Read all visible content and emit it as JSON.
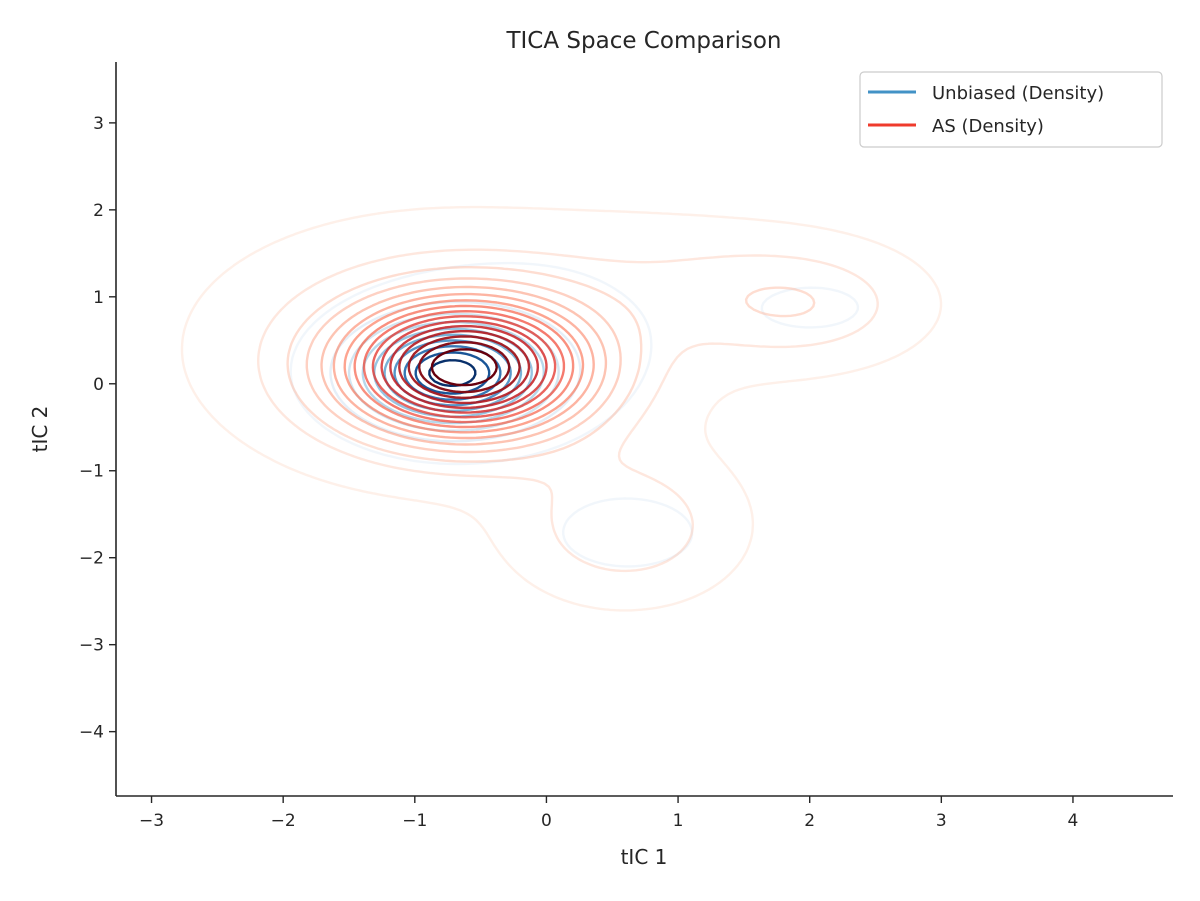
{
  "chart_data": {
    "type": "contour",
    "title": "TICA Space Comparison",
    "xlabel": "tIC 1",
    "ylabel": "tIC 2",
    "xlim": [
      -3.27,
      4.76
    ],
    "ylim": [
      -4.74,
      3.7
    ],
    "xticks": [
      -3,
      -2,
      -1,
      0,
      1,
      2,
      3,
      4
    ],
    "yticks": [
      -4,
      -3,
      -2,
      -1,
      0,
      1,
      2,
      3
    ],
    "xtick_labels": [
      "−3",
      "−2",
      "−1",
      "0",
      "1",
      "2",
      "3",
      "4"
    ],
    "ytick_labels": [
      "−4",
      "−3",
      "−2",
      "−1",
      "0",
      "1",
      "2",
      "3"
    ],
    "grid": false,
    "legend": {
      "placement": "top-right",
      "entries": [
        {
          "label": "Unbiased (Density)",
          "color": "#4292c6"
        },
        {
          "label": "AS (Density)",
          "color": "#ef3b2c"
        }
      ]
    },
    "series": [
      {
        "name": "Unbiased (Density)",
        "colormap": "Blues",
        "levels": 10,
        "components": [
          {
            "x": -0.72,
            "y": 0.12,
            "sx": 0.45,
            "sy": 0.38,
            "w": 1.0
          },
          {
            "x": 0.62,
            "y": -1.72,
            "sx": 0.42,
            "sy": 0.33,
            "w": 0.06
          },
          {
            "x": 2.05,
            "y": 0.88,
            "sx": 0.42,
            "sy": 0.28,
            "w": 0.04
          },
          {
            "x": -0.15,
            "y": 0.55,
            "sx": 0.9,
            "sy": 0.8,
            "w": 0.05
          }
        ]
      },
      {
        "name": "AS (Density)",
        "colormap": "Reds",
        "levels": 16,
        "components": [
          {
            "x": -0.62,
            "y": 0.18,
            "sx": 0.62,
            "sy": 0.52,
            "w": 1.0
          },
          {
            "x": -0.8,
            "y": 0.45,
            "sx": 1.2,
            "sy": 0.95,
            "w": 0.12
          },
          {
            "x": 0.6,
            "y": -1.65,
            "sx": 0.55,
            "sy": 0.55,
            "w": 0.15
          },
          {
            "x": 1.95,
            "y": 0.9,
            "sx": 0.6,
            "sy": 0.45,
            "w": 0.14
          },
          {
            "x": 1.0,
            "y": 1.2,
            "sx": 0.8,
            "sy": 0.5,
            "w": 0.06
          }
        ]
      }
    ]
  },
  "colors": {
    "blues": [
      "#deebf7",
      "#c6dbef",
      "#9ecae1",
      "#6baed6",
      "#4292c6",
      "#2171b5",
      "#08519c",
      "#08306b"
    ],
    "reds": [
      "#fee0d2",
      "#fcbba1",
      "#fc9272",
      "#fb6a4a",
      "#ef3b2c",
      "#cb181d",
      "#a50f15",
      "#67000d"
    ],
    "axis": "#262626"
  }
}
